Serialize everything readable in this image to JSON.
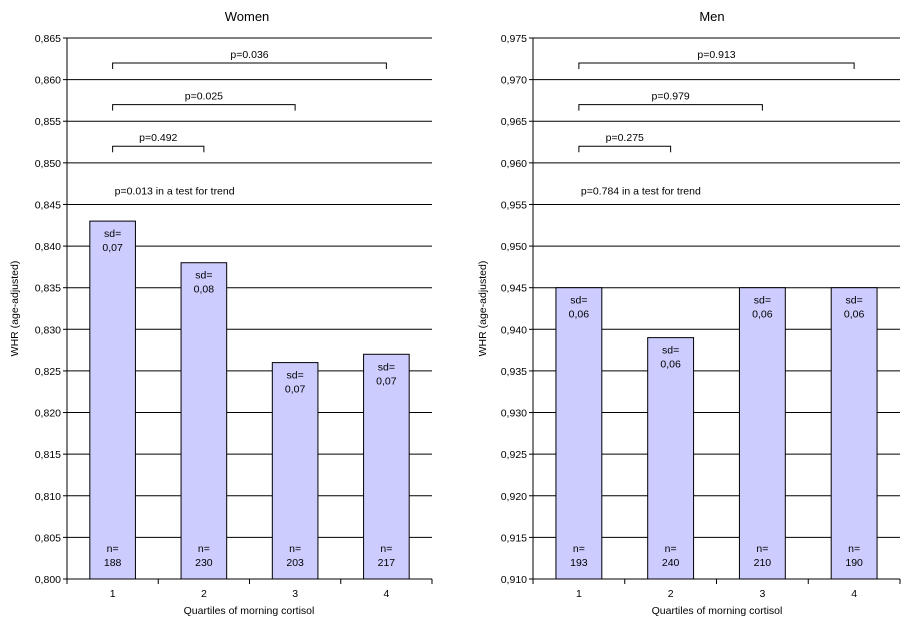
{
  "colors": {
    "bar_fill": "#ccccff",
    "bar_stroke": "#000000",
    "grid": "#000000"
  },
  "chart_data": [
    {
      "type": "bar",
      "title": "Women",
      "xlabel": "Quartiles of morning cortisol",
      "ylabel": "WHR (age-adjusted)",
      "categories": [
        "1",
        "2",
        "3",
        "4"
      ],
      "values": [
        0.843,
        0.838,
        0.826,
        0.827
      ],
      "ylim": [
        0.8,
        0.865
      ],
      "ytick_step": 0.005,
      "yticks": [
        "0,800",
        "0,805",
        "0,810",
        "0,815",
        "0,820",
        "0,825",
        "0,830",
        "0,835",
        "0,840",
        "0,845",
        "0,850",
        "0,855",
        "0,860",
        "0,865"
      ],
      "grid": true,
      "sd_prefix": "sd=",
      "sd_labels": [
        "0,07",
        "0,08",
        "0,07",
        "0,07"
      ],
      "n_prefix": "n=",
      "n_labels": [
        "188",
        "230",
        "203",
        "217"
      ],
      "brackets": [
        {
          "from": 1,
          "to": 2,
          "at": 0.852,
          "label": "p=0.492"
        },
        {
          "from": 1,
          "to": 3,
          "at": 0.857,
          "label": "p=0.025"
        },
        {
          "from": 1,
          "to": 4,
          "at": 0.862,
          "label": "p=0.036"
        }
      ],
      "trend_text": "p=0.013 in a test for trend",
      "trend_at": 0.8462
    },
    {
      "type": "bar",
      "title": "Men",
      "xlabel": "Quartiles of morning cortisol",
      "ylabel": "WHR (age-adjusted)",
      "categories": [
        "1",
        "2",
        "3",
        "4"
      ],
      "values": [
        0.945,
        0.939,
        0.945,
        0.945
      ],
      "ylim": [
        0.91,
        0.975
      ],
      "ytick_step": 0.005,
      "yticks": [
        "0,910",
        "0,915",
        "0,920",
        "0,925",
        "0,930",
        "0,935",
        "0,940",
        "0,945",
        "0,950",
        "0,955",
        "0,960",
        "0,965",
        "0,970",
        "0,975"
      ],
      "grid": true,
      "sd_prefix": "sd=",
      "sd_labels": [
        "0,06",
        "0,06",
        "0,06",
        "0,06"
      ],
      "n_prefix": "n=",
      "n_labels": [
        "193",
        "240",
        "210",
        "190"
      ],
      "brackets": [
        {
          "from": 1,
          "to": 2,
          "at": 0.962,
          "label": "p=0.275"
        },
        {
          "from": 1,
          "to": 3,
          "at": 0.967,
          "label": "p=0.979"
        },
        {
          "from": 1,
          "to": 4,
          "at": 0.972,
          "label": "p=0.913"
        }
      ],
      "trend_text": "p=0.784 in a test for trend",
      "trend_at": 0.9562
    }
  ]
}
